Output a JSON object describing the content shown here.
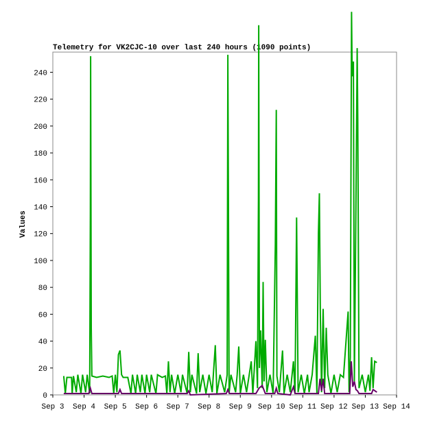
{
  "chart_data": {
    "type": "line",
    "title": "Telemetry for VK2CJC-10 over last 240 hours (1090 points)",
    "y_label": "Values",
    "xlim": [
      3,
      14
    ],
    "xticks": [
      {
        "value": 3,
        "label": "Sep 3"
      },
      {
        "value": 4,
        "label": "Sep 4"
      },
      {
        "value": 5,
        "label": "Sep 5"
      },
      {
        "value": 6,
        "label": "Sep 6"
      },
      {
        "value": 7,
        "label": "Sep 7"
      },
      {
        "value": 8,
        "label": "Sep 8"
      },
      {
        "value": 9,
        "label": "Sep 9"
      },
      {
        "value": 10,
        "label": "Sep 10"
      },
      {
        "value": 11,
        "label": "Sep 11"
      },
      {
        "value": 12,
        "label": "Sep 12"
      },
      {
        "value": 13,
        "label": "Sep 13"
      },
      {
        "value": 14,
        "label": "Sep 14"
      }
    ],
    "ylim": [
      0,
      255
    ],
    "yticks": [
      0,
      20,
      40,
      60,
      80,
      100,
      120,
      140,
      160,
      180,
      200,
      220,
      240
    ],
    "series": [
      {
        "color": "#00aa00",
        "x": [
          3.35,
          3.4,
          3.45,
          3.6,
          3.62,
          3.66,
          3.75,
          3.8,
          3.9,
          3.95,
          4.05,
          4.1,
          4.18,
          4.2,
          4.21,
          4.23,
          4.25,
          4.4,
          4.6,
          4.8,
          4.9,
          4.95,
          5.0,
          5.05,
          5.1,
          5.15,
          5.2,
          5.25,
          5.4,
          5.5,
          5.55,
          5.65,
          5.7,
          5.8,
          5.85,
          5.95,
          6.0,
          6.1,
          6.15,
          6.3,
          6.35,
          6.5,
          6.6,
          6.65,
          6.7,
          6.75,
          6.8,
          6.9,
          7.0,
          7.1,
          7.15,
          7.3,
          7.35,
          7.4,
          7.45,
          7.6,
          7.65,
          7.7,
          7.8,
          7.9,
          8.0,
          8.1,
          8.2,
          8.25,
          8.35,
          8.5,
          8.58,
          8.6,
          8.62,
          8.64,
          8.7,
          8.85,
          8.9,
          8.95,
          9.0,
          9.1,
          9.2,
          9.35,
          9.4,
          9.5,
          9.55,
          9.58,
          9.59,
          9.61,
          9.65,
          9.7,
          9.73,
          9.76,
          9.8,
          9.85,
          9.95,
          10.05,
          10.12,
          10.15,
          10.17,
          10.25,
          10.35,
          10.4,
          10.5,
          10.6,
          10.7,
          10.75,
          10.8,
          10.82,
          10.85,
          10.95,
          11.05,
          11.15,
          11.2,
          11.3,
          11.4,
          11.45,
          11.5,
          11.53,
          11.56,
          11.6,
          11.65,
          11.7,
          11.75,
          11.8,
          11.9,
          12.0,
          12.1,
          12.2,
          12.3,
          12.45,
          12.48,
          12.52,
          12.56,
          12.58,
          12.62,
          12.65,
          12.7,
          12.74,
          12.76,
          12.8,
          12.9,
          13.0,
          13.1,
          13.15,
          13.2,
          13.25,
          13.3,
          13.37
        ],
        "values": [
          14,
          1,
          13,
          13,
          1,
          14,
          2,
          15,
          1,
          15,
          2,
          15,
          1,
          135,
          252,
          50,
          14,
          13,
          14,
          13,
          14,
          1,
          15,
          2,
          30,
          33,
          15,
          13,
          13,
          1,
          15,
          1,
          15,
          2,
          15,
          1,
          15,
          2,
          15,
          1,
          15,
          13,
          14,
          1,
          25,
          2,
          15,
          1,
          15,
          2,
          15,
          1,
          32,
          2,
          15,
          1,
          31,
          2,
          15,
          1,
          15,
          2,
          37,
          1,
          15,
          2,
          15,
          253,
          135,
          1,
          15,
          2,
          15,
          36,
          1,
          15,
          2,
          25,
          1,
          40,
          5,
          146,
          275,
          20,
          48,
          5,
          84,
          10,
          41,
          2,
          15,
          1,
          112,
          212,
          14,
          2,
          33,
          1,
          15,
          2,
          25,
          1,
          132,
          80,
          2,
          15,
          1,
          15,
          2,
          15,
          44,
          1,
          120,
          150,
          60,
          2,
          64,
          5,
          50,
          15,
          1,
          15,
          2,
          15,
          13,
          62,
          2,
          28,
          285,
          237,
          248,
          10,
          140,
          258,
          203,
          5,
          15,
          2,
          15,
          3,
          28,
          5,
          25,
          24
        ]
      },
      {
        "color": "#660066",
        "x": [
          3.35,
          4.15,
          4.2,
          4.25,
          5.1,
          5.15,
          5.2,
          7.3,
          7.35,
          7.4,
          8.55,
          8.6,
          8.65,
          9.5,
          9.6,
          9.7,
          9.8,
          10.1,
          10.15,
          10.2,
          10.6,
          10.7,
          10.75,
          11.5,
          11.55,
          11.6,
          11.65,
          11.7,
          12.5,
          12.55,
          12.6,
          12.65,
          12.7,
          12.75,
          12.8,
          13.2,
          13.25,
          13.37
        ],
        "values": [
          1,
          1,
          5,
          1,
          1,
          4,
          1,
          1,
          3,
          0,
          1,
          4,
          1,
          1,
          5,
          7,
          1,
          1,
          5,
          1,
          0,
          6,
          1,
          1,
          12,
          3,
          12,
          1,
          1,
          25,
          6,
          10,
          4,
          3,
          1,
          1,
          4,
          2
        ]
      }
    ]
  }
}
